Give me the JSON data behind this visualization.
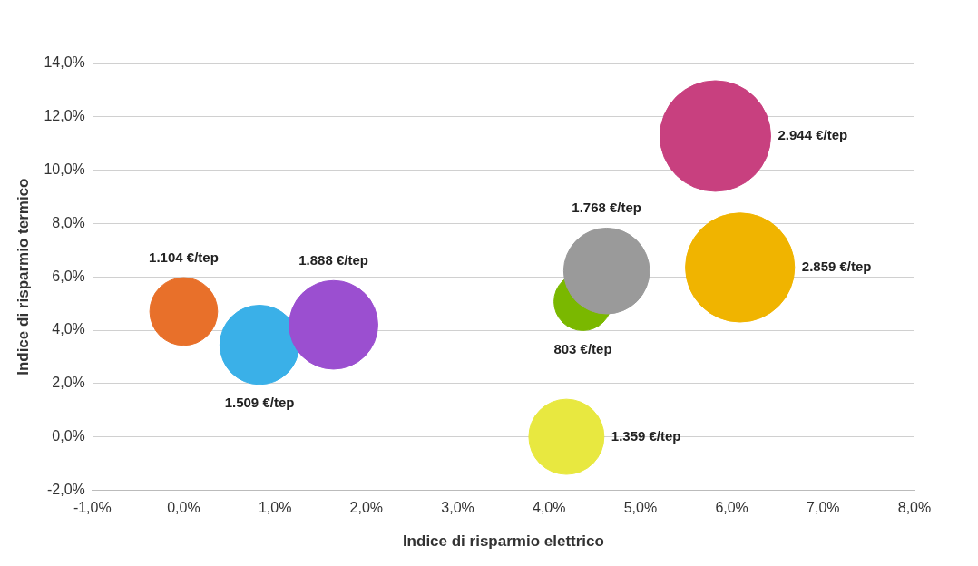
{
  "chart_data": {
    "type": "bubble",
    "xlabel": "Indice di risparmio elettrico",
    "ylabel": "Indice di risparmio termico",
    "x": [
      0.0,
      0.83,
      1.64,
      4.19,
      4.37,
      4.63,
      5.82,
      6.09
    ],
    "values": [
      4.7,
      3.45,
      4.2,
      0.0,
      5.07,
      6.22,
      11.28,
      6.35
    ],
    "sizes": [
      1104,
      1509,
      1888,
      1359,
      803,
      1768,
      2944,
      2859
    ],
    "colors": [
      "#e8702a",
      "#3ab0e8",
      "#9b4fd0",
      "#e8e840",
      "#7ab800",
      "#9a9a9a",
      "#c8407f",
      "#f0b400"
    ],
    "value_labels": [
      "1.104 €/tep",
      "1.509 €/tep",
      "1.888 €/tep",
      "1.359 €/tep",
      "803 €/tep",
      "1.768 €/tep",
      "2.944 €/tep",
      "2.859 €/tep"
    ],
    "xlim": [
      -1,
      8
    ],
    "xticks": [
      {
        "value": -1,
        "label": "-1,0%"
      },
      {
        "value": 0,
        "label": "0,0%"
      },
      {
        "value": 1,
        "label": "1,0%"
      },
      {
        "value": 2,
        "label": "2,0%"
      },
      {
        "value": 3,
        "label": "3,0%"
      },
      {
        "value": 4,
        "label": "4,0%"
      },
      {
        "value": 5,
        "label": "5,0%"
      },
      {
        "value": 6,
        "label": "6,0%"
      },
      {
        "value": 7,
        "label": "7,0%"
      },
      {
        "value": 8,
        "label": "8,0%"
      }
    ],
    "ylim": [
      -2,
      14
    ],
    "yticks": [
      {
        "value": -2,
        "label": "-2,0%"
      },
      {
        "value": 0,
        "label": "0,0%"
      },
      {
        "value": 2,
        "label": "2,0%"
      },
      {
        "value": 4,
        "label": "4,0%"
      },
      {
        "value": 6,
        "label": "6,0%"
      },
      {
        "value": 8,
        "label": "8,0%"
      },
      {
        "value": 10,
        "label": "10,0%"
      },
      {
        "value": 12,
        "label": "12,0%"
      },
      {
        "value": 14,
        "label": "14,0%"
      }
    ],
    "grid": "y",
    "legend": false
  }
}
